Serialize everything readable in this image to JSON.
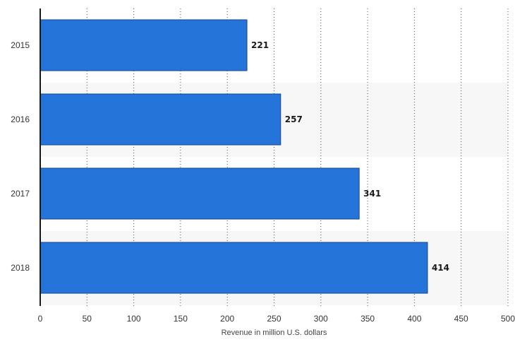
{
  "chart_data": {
    "type": "bar",
    "orientation": "horizontal",
    "categories": [
      "2015",
      "2016",
      "2017",
      "2018"
    ],
    "values": [
      221,
      257,
      341,
      414
    ],
    "title": "",
    "xlabel": "Revenue in million U.S. dollars",
    "ylabel": "",
    "xlim": [
      0,
      500
    ],
    "x_ticks": [
      0,
      50,
      100,
      150,
      200,
      250,
      300,
      350,
      400,
      450,
      500
    ],
    "grid": "vertical dotted",
    "legend": "none",
    "bar_color": "#2474d9",
    "bar_edge_color": "#16468a",
    "band_color": "#f7f7f7"
  }
}
